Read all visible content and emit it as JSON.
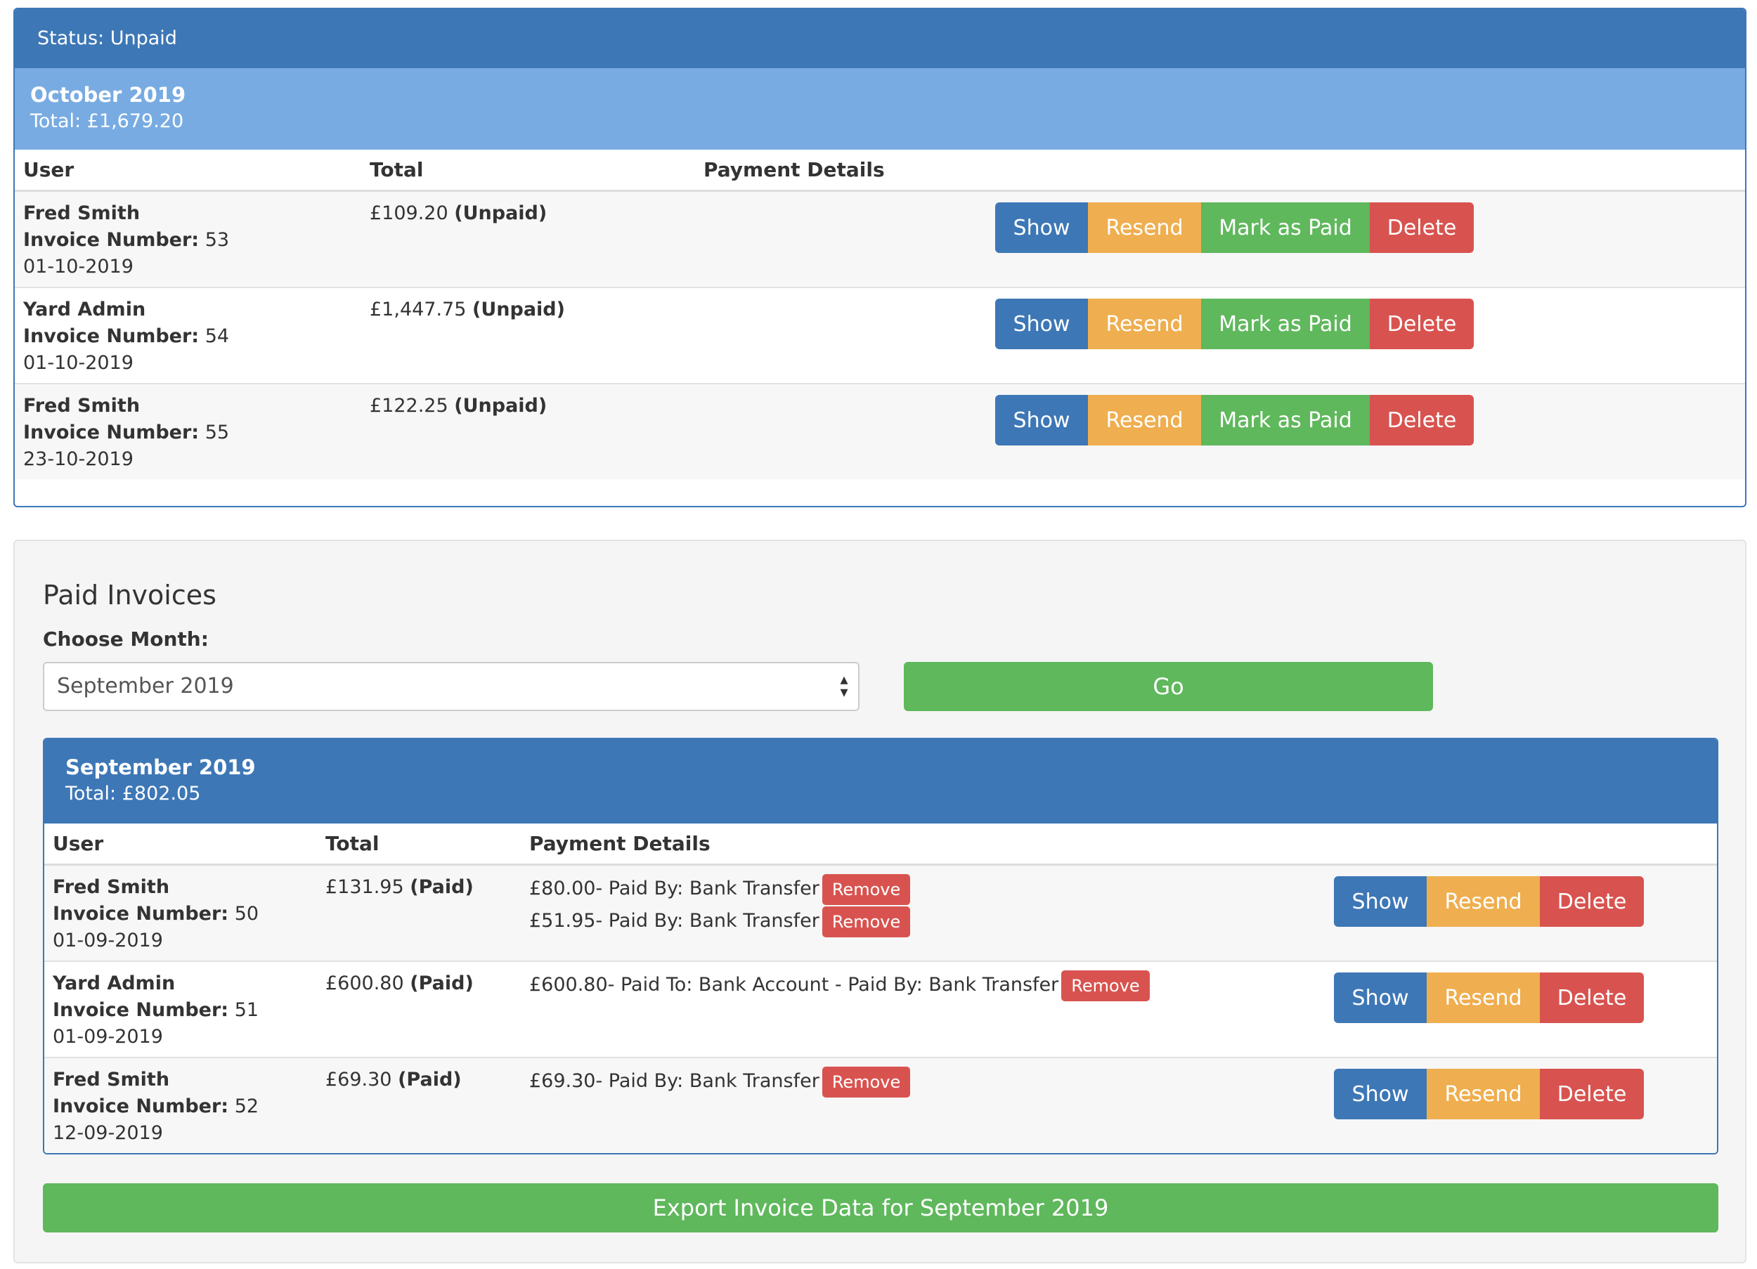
{
  "unpaid": {
    "status_text": "Status: Unpaid",
    "month_title": "October 2019",
    "month_total": "Total: £1,679.20",
    "columns": {
      "user": "User",
      "total": "Total",
      "payment_details": "Payment Details"
    },
    "rows": [
      {
        "user": "Fred Smith",
        "invoice_label": "Invoice Number:",
        "invoice_number": "53",
        "date": "01-10-2019",
        "amount": "£109.20",
        "status": "(Unpaid)"
      },
      {
        "user": "Yard Admin",
        "invoice_label": "Invoice Number:",
        "invoice_number": "54",
        "date": "01-10-2019",
        "amount": "£1,447.75",
        "status": "(Unpaid)"
      },
      {
        "user": "Fred Smith",
        "invoice_label": "Invoice Number:",
        "invoice_number": "55",
        "date": "23-10-2019",
        "amount": "£122.25",
        "status": "(Unpaid)"
      }
    ],
    "buttons": {
      "show": "Show",
      "resend": "Resend",
      "mark_paid": "Mark as Paid",
      "delete": "Delete"
    }
  },
  "paid": {
    "heading": "Paid Invoices",
    "choose_label": "Choose Month:",
    "selected_month": "September 2019",
    "select_arrows": "▴▾",
    "go_label": "Go",
    "month_title": "September 2019",
    "month_total": "Total: £802.05",
    "columns": {
      "user": "User",
      "total": "Total",
      "payment_details": "Payment Details"
    },
    "rows": [
      {
        "user": "Fred Smith",
        "invoice_label": "Invoice Number:",
        "invoice_number": "50",
        "date": "01-09-2019",
        "amount": "£131.95",
        "status": "(Paid)",
        "payments": [
          "£80.00- Paid By: Bank Transfer",
          "£51.95- Paid By: Bank Transfer"
        ]
      },
      {
        "user": "Yard Admin",
        "invoice_label": "Invoice Number:",
        "invoice_number": "51",
        "date": "01-09-2019",
        "amount": "£600.80",
        "status": "(Paid)",
        "payments": [
          "£600.80- Paid To: Bank Account - Paid By: Bank Transfer"
        ]
      },
      {
        "user": "Fred Smith",
        "invoice_label": "Invoice Number:",
        "invoice_number": "52",
        "date": "12-09-2019",
        "amount": "£69.30",
        "status": "(Paid)",
        "payments": [
          "£69.30- Paid By: Bank Transfer"
        ]
      }
    ],
    "remove_label": "Remove",
    "buttons": {
      "show": "Show",
      "resend": "Resend",
      "delete": "Delete"
    },
    "export_label": "Export Invoice Data for September 2019"
  },
  "colors": {
    "primary": "#3d77b6",
    "light_primary": "#78abe2",
    "warning": "#efae4f",
    "success": "#5fb85c",
    "danger": "#d8534f"
  }
}
